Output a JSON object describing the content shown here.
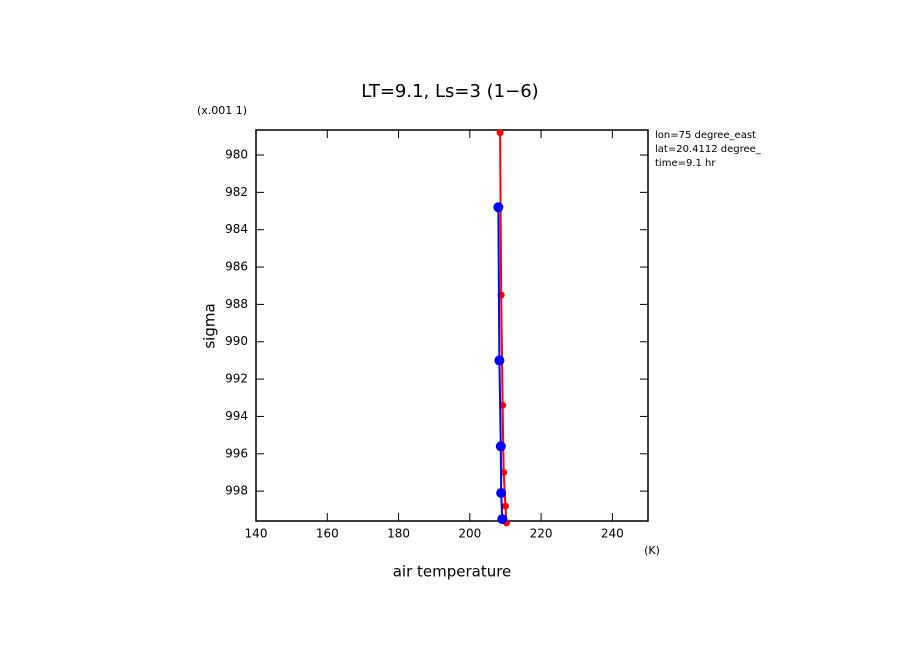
{
  "chart_data": {
    "type": "line",
    "title": "LT=9.1, Ls=3 (1−6)",
    "y_scale_note": "(x.001 1)",
    "xlabel": "air temperature",
    "x_unit": "(K)",
    "ylabel": "sigma",
    "annotations": [
      "lon=75 degree_east",
      "lat=20.4112 degree_",
      "time=9.1 hr"
    ],
    "xlim": [
      140,
      250
    ],
    "xticks": [
      140,
      160,
      180,
      200,
      220,
      240
    ],
    "ylim": [
      978.66,
      999.6
    ],
    "yticks": [
      980,
      982,
      984,
      986,
      988,
      990,
      992,
      994,
      996,
      998
    ],
    "y_inverted": true,
    "series": [
      {
        "color": "#ff0000",
        "x": [
          208.5,
          208.8,
          209.2,
          209.5,
          210.0,
          210.3
        ],
        "values": [
          978.8,
          987.5,
          993.4,
          997.0,
          998.8,
          999.7
        ]
      },
      {
        "color": "#0000ff",
        "x": [
          208.0,
          208.3,
          208.7,
          208.8,
          209.1
        ],
        "values": [
          982.8,
          991.0,
          995.6,
          998.1,
          999.5
        ]
      }
    ]
  }
}
